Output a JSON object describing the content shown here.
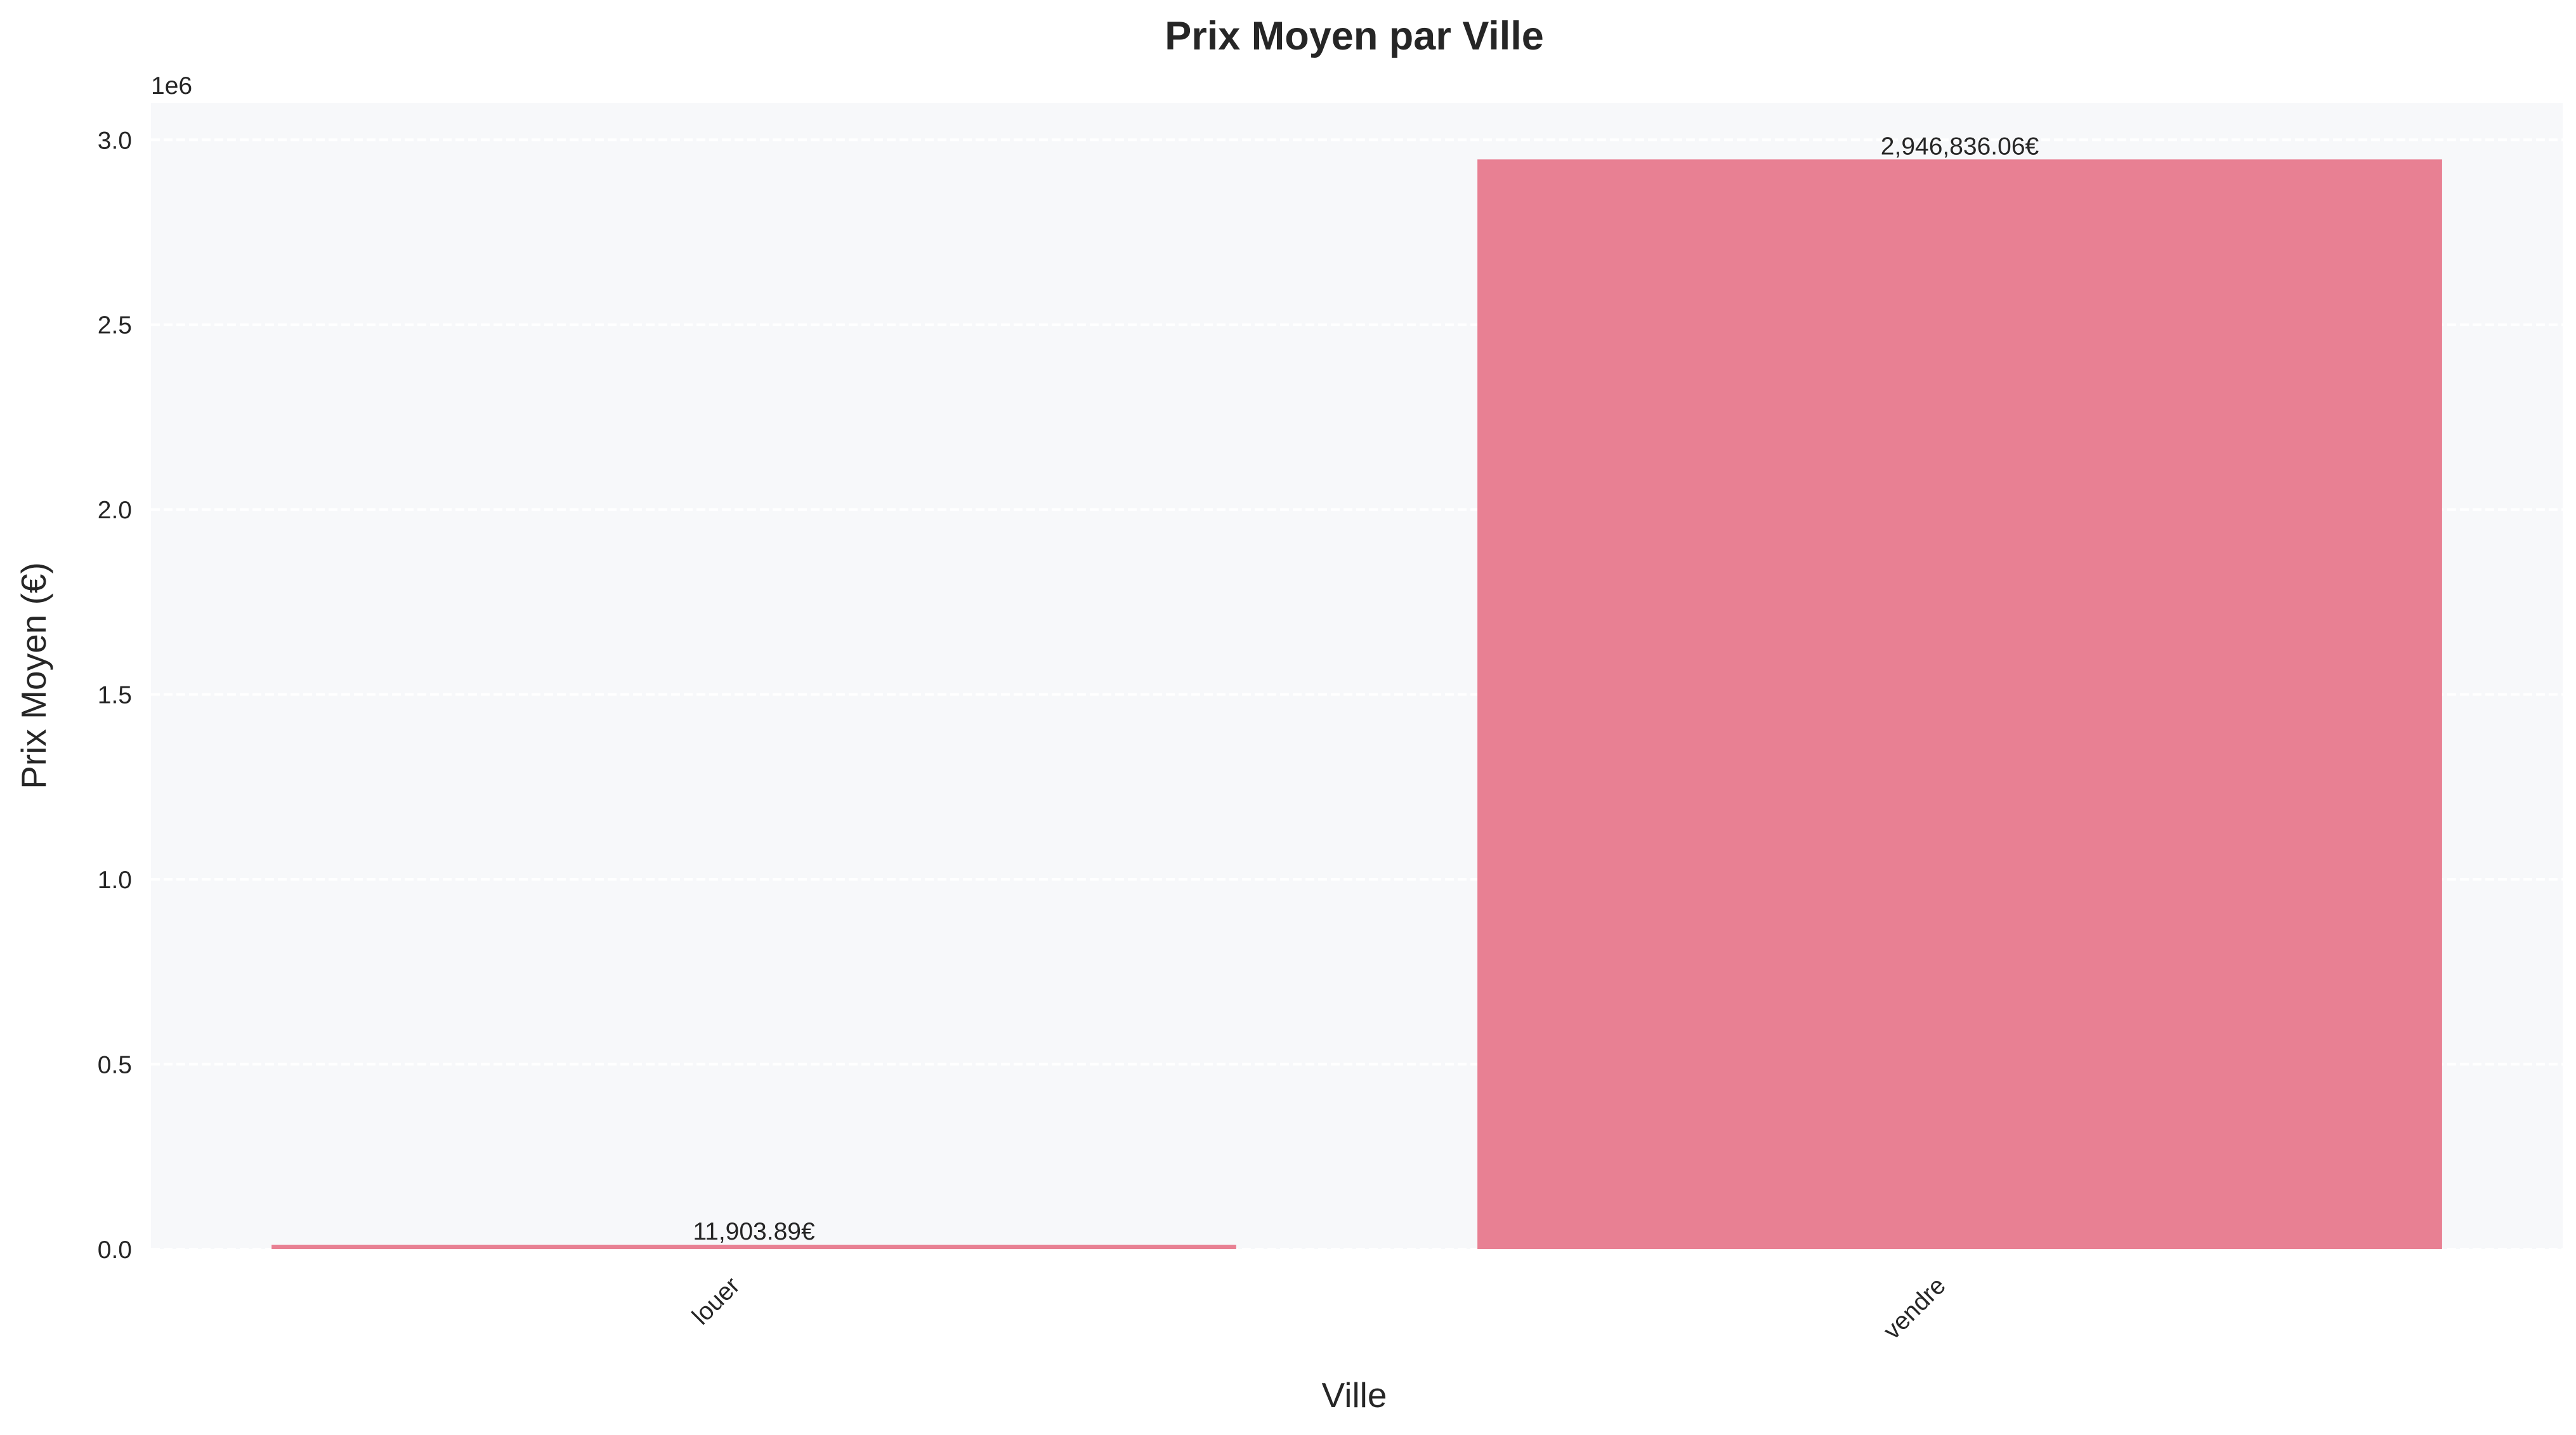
{
  "chart_data": {
    "type": "bar",
    "title": "Prix Moyen par Ville",
    "xlabel": "Ville",
    "ylabel": "Prix Moyen (€)",
    "y_offset_label": "1e6",
    "categories": [
      "louer",
      "vendre"
    ],
    "values": [
      11903.89,
      2946836.06
    ],
    "data_labels": [
      "11,903.89€",
      "2,946,836.06€"
    ],
    "ylim": [
      0,
      3.1
    ],
    "ylim_scale": 1000000,
    "yticks": [
      0.0,
      0.5,
      1.0,
      1.5,
      2.0,
      2.5,
      3.0
    ],
    "ytick_labels": [
      "0.0",
      "0.5",
      "1.0",
      "1.5",
      "2.0",
      "2.5",
      "3.0"
    ],
    "grid": true,
    "bar_color": "#e88093",
    "plot_background": "#f7f8fa",
    "grid_color": "#ffffff"
  }
}
